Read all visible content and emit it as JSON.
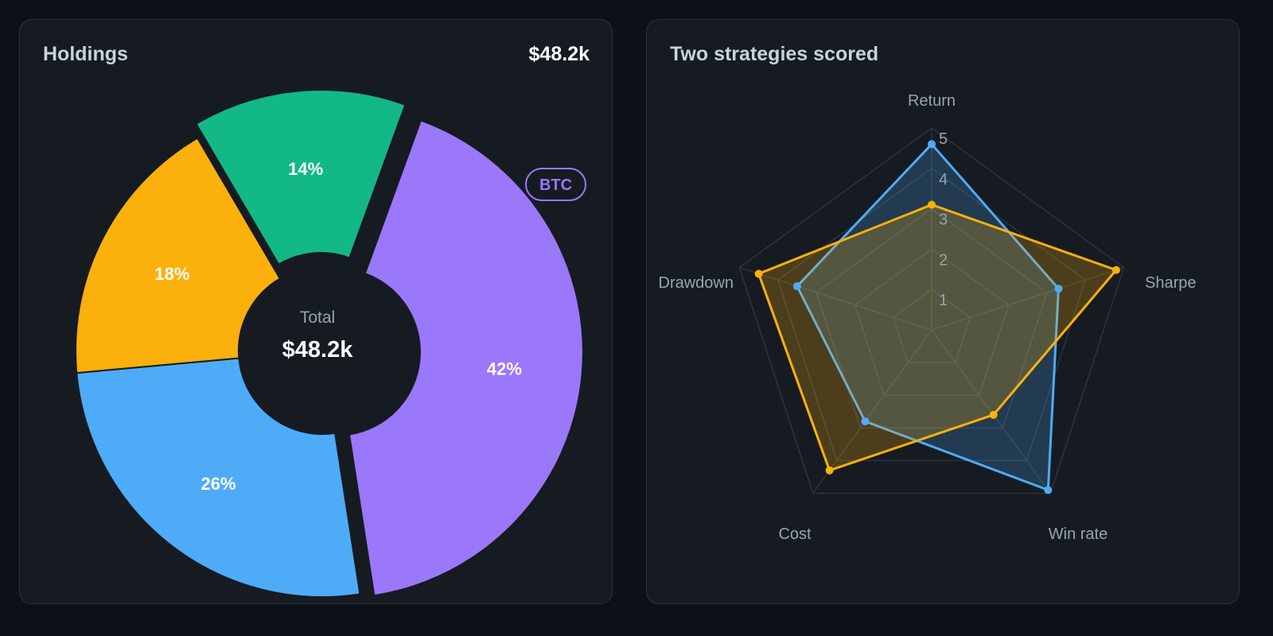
{
  "holdings": {
    "title": "Holdings",
    "total_header": "$48.2k",
    "center_label": "Total",
    "center_value": "$48.2k",
    "badge": "BTC",
    "chart_data": {
      "type": "pie",
      "title": "Holdings",
      "categories": [
        "BTC",
        "",
        "",
        ""
      ],
      "values": [
        42,
        26,
        18,
        14
      ],
      "labels": [
        "42%",
        "26%",
        "18%",
        "14%"
      ],
      "colors": [
        "#9b77f9",
        "#4dabf7",
        "#fcb00c",
        "#12b886"
      ],
      "exploded": [
        true,
        false,
        false,
        true
      ]
    }
  },
  "radar": {
    "title": "Two strategies scored",
    "chart_data": {
      "type": "radar",
      "title": "Two strategies scored",
      "axes": [
        "Return",
        "Sharpe",
        "Win rate",
        "Cost",
        "Drawdown"
      ],
      "ticks": [
        "1",
        "2",
        "3",
        "4",
        "5"
      ],
      "range": [
        0,
        5
      ],
      "series": [
        {
          "values": [
            4.6,
            3.3,
            4.9,
            2.8,
            3.5
          ],
          "color": "#4dabf7"
        },
        {
          "values": [
            3.1,
            4.8,
            2.6,
            4.3,
            4.5
          ],
          "color": "#fcb00c"
        }
      ]
    }
  }
}
